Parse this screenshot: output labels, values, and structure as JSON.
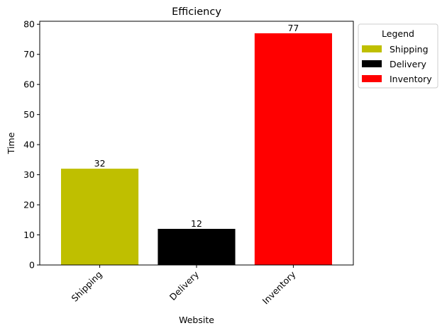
{
  "chart_data": {
    "type": "bar",
    "title": "Efficiency",
    "xlabel": "Website",
    "ylabel": "Time",
    "categories": [
      "Shipping",
      "Delivery",
      "Inventory"
    ],
    "values": [
      32,
      12,
      77
    ],
    "colors": [
      "#bfbf00",
      "#000000",
      "#ff0000"
    ],
    "ylim": [
      0,
      81
    ],
    "yticks": [
      0,
      10,
      20,
      30,
      40,
      50,
      60,
      70,
      80
    ],
    "data_labels": [
      "32",
      "12",
      "77"
    ],
    "grid": false,
    "legend": {
      "title": "Legend",
      "placement": "outside-upper-right",
      "entries": [
        "Shipping",
        "Delivery",
        "Inventory"
      ]
    }
  }
}
